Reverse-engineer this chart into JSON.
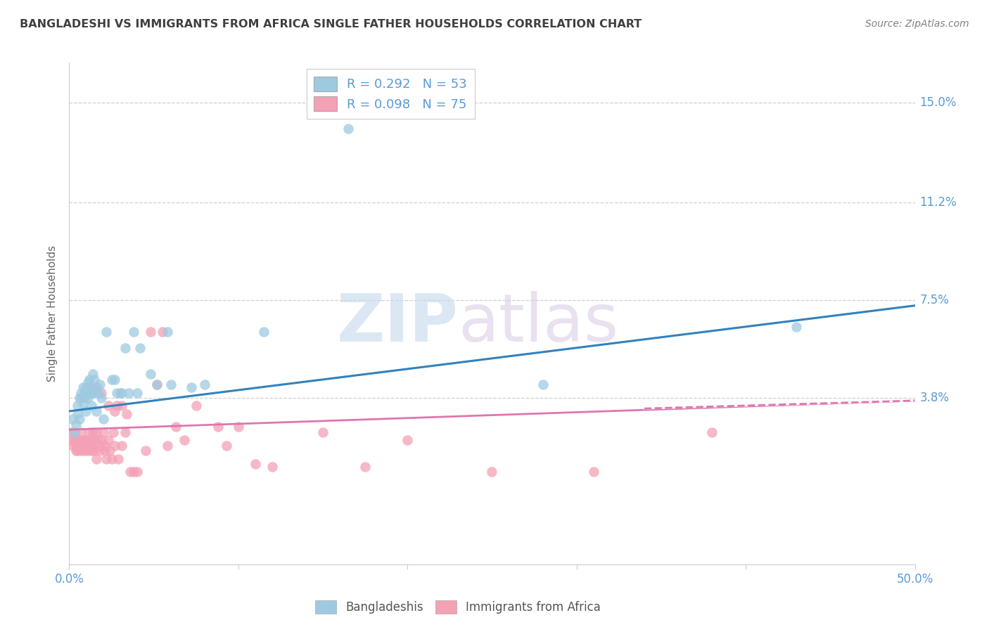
{
  "title": "BANGLADESHI VS IMMIGRANTS FROM AFRICA SINGLE FATHER HOUSEHOLDS CORRELATION CHART",
  "source": "Source: ZipAtlas.com",
  "ylabel": "Single Father Households",
  "ytick_labels": [
    "15.0%",
    "11.2%",
    "7.5%",
    "3.8%"
  ],
  "ytick_values": [
    0.15,
    0.112,
    0.075,
    0.038
  ],
  "xtick_values": [
    0.0,
    0.1,
    0.2,
    0.3,
    0.4,
    0.5
  ],
  "xtick_labels_show": [
    "0.0%",
    "",
    "",
    "",
    "",
    "50.0%"
  ],
  "xlim": [
    0.0,
    0.5
  ],
  "ylim": [
    -0.025,
    0.165
  ],
  "blue_R": "0.292",
  "blue_N": "53",
  "pink_R": "0.098",
  "pink_N": "75",
  "blue_color": "#9ecae1",
  "pink_color": "#f4a0b5",
  "blue_line_color": "#3182bd",
  "pink_line_color": "#de77ae",
  "blue_scatter": [
    [
      0.002,
      0.03
    ],
    [
      0.003,
      0.025
    ],
    [
      0.004,
      0.028
    ],
    [
      0.005,
      0.032
    ],
    [
      0.005,
      0.035
    ],
    [
      0.006,
      0.038
    ],
    [
      0.006,
      0.03
    ],
    [
      0.007,
      0.04
    ],
    [
      0.007,
      0.038
    ],
    [
      0.008,
      0.036
    ],
    [
      0.008,
      0.042
    ],
    [
      0.009,
      0.04
    ],
    [
      0.009,
      0.038
    ],
    [
      0.01,
      0.042
    ],
    [
      0.01,
      0.04
    ],
    [
      0.01,
      0.033
    ],
    [
      0.011,
      0.044
    ],
    [
      0.011,
      0.038
    ],
    [
      0.012,
      0.042
    ],
    [
      0.012,
      0.045
    ],
    [
      0.013,
      0.04
    ],
    [
      0.013,
      0.035
    ],
    [
      0.014,
      0.04
    ],
    [
      0.014,
      0.047
    ],
    [
      0.015,
      0.045
    ],
    [
      0.015,
      0.041
    ],
    [
      0.016,
      0.042
    ],
    [
      0.016,
      0.033
    ],
    [
      0.017,
      0.04
    ],
    [
      0.018,
      0.043
    ],
    [
      0.019,
      0.038
    ],
    [
      0.02,
      0.03
    ],
    [
      0.022,
      0.063
    ],
    [
      0.025,
      0.045
    ],
    [
      0.027,
      0.045
    ],
    [
      0.028,
      0.04
    ],
    [
      0.03,
      0.04
    ],
    [
      0.031,
      0.04
    ],
    [
      0.033,
      0.057
    ],
    [
      0.035,
      0.04
    ],
    [
      0.038,
      0.063
    ],
    [
      0.04,
      0.04
    ],
    [
      0.042,
      0.057
    ],
    [
      0.048,
      0.047
    ],
    [
      0.052,
      0.043
    ],
    [
      0.058,
      0.063
    ],
    [
      0.06,
      0.043
    ],
    [
      0.072,
      0.042
    ],
    [
      0.08,
      0.043
    ],
    [
      0.115,
      0.063
    ],
    [
      0.165,
      0.14
    ],
    [
      0.28,
      0.043
    ],
    [
      0.43,
      0.065
    ]
  ],
  "pink_scatter": [
    [
      0.001,
      0.025
    ],
    [
      0.002,
      0.022
    ],
    [
      0.002,
      0.02
    ],
    [
      0.003,
      0.025
    ],
    [
      0.003,
      0.022
    ],
    [
      0.004,
      0.02
    ],
    [
      0.004,
      0.018
    ],
    [
      0.005,
      0.022
    ],
    [
      0.005,
      0.018
    ],
    [
      0.006,
      0.022
    ],
    [
      0.006,
      0.02
    ],
    [
      0.007,
      0.018
    ],
    [
      0.007,
      0.025
    ],
    [
      0.008,
      0.022
    ],
    [
      0.008,
      0.02
    ],
    [
      0.009,
      0.018
    ],
    [
      0.01,
      0.022
    ],
    [
      0.01,
      0.02
    ],
    [
      0.011,
      0.022
    ],
    [
      0.011,
      0.018
    ],
    [
      0.012,
      0.025
    ],
    [
      0.012,
      0.02
    ],
    [
      0.013,
      0.022
    ],
    [
      0.013,
      0.018
    ],
    [
      0.014,
      0.025
    ],
    [
      0.014,
      0.02
    ],
    [
      0.015,
      0.022
    ],
    [
      0.015,
      0.018
    ],
    [
      0.016,
      0.025
    ],
    [
      0.016,
      0.042
    ],
    [
      0.016,
      0.015
    ],
    [
      0.017,
      0.022
    ],
    [
      0.018,
      0.02
    ],
    [
      0.018,
      0.018
    ],
    [
      0.019,
      0.04
    ],
    [
      0.019,
      0.022
    ],
    [
      0.02,
      0.025
    ],
    [
      0.021,
      0.02
    ],
    [
      0.021,
      0.018
    ],
    [
      0.022,
      0.015
    ],
    [
      0.023,
      0.022
    ],
    [
      0.023,
      0.035
    ],
    [
      0.024,
      0.018
    ],
    [
      0.025,
      0.015
    ],
    [
      0.026,
      0.025
    ],
    [
      0.027,
      0.02
    ],
    [
      0.027,
      0.033
    ],
    [
      0.028,
      0.035
    ],
    [
      0.029,
      0.015
    ],
    [
      0.031,
      0.02
    ],
    [
      0.031,
      0.035
    ],
    [
      0.033,
      0.025
    ],
    [
      0.034,
      0.032
    ],
    [
      0.036,
      0.01
    ],
    [
      0.038,
      0.01
    ],
    [
      0.04,
      0.01
    ],
    [
      0.045,
      0.018
    ],
    [
      0.048,
      0.063
    ],
    [
      0.052,
      0.043
    ],
    [
      0.055,
      0.063
    ],
    [
      0.058,
      0.02
    ],
    [
      0.063,
      0.027
    ],
    [
      0.068,
      0.022
    ],
    [
      0.075,
      0.035
    ],
    [
      0.088,
      0.027
    ],
    [
      0.093,
      0.02
    ],
    [
      0.1,
      0.027
    ],
    [
      0.11,
      0.013
    ],
    [
      0.12,
      0.012
    ],
    [
      0.15,
      0.025
    ],
    [
      0.175,
      0.012
    ],
    [
      0.2,
      0.022
    ],
    [
      0.25,
      0.01
    ],
    [
      0.31,
      0.01
    ],
    [
      0.38,
      0.025
    ]
  ],
  "blue_trendline": [
    [
      0.0,
      0.033
    ],
    [
      0.5,
      0.073
    ]
  ],
  "pink_trendline": [
    [
      0.0,
      0.026
    ],
    [
      0.5,
      0.037
    ]
  ],
  "pink_dash_trendline": [
    [
      0.34,
      0.034
    ],
    [
      0.5,
      0.037
    ]
  ],
  "legend_label_blue": "Bangladeshis",
  "legend_label_pink": "Immigrants from Africa",
  "watermark_zip": "ZIP",
  "watermark_atlas": "atlas",
  "background_color": "#ffffff",
  "grid_color": "#d0d0d0",
  "axis_color": "#cccccc",
  "right_label_color": "#5b9bd5",
  "title_color": "#404040",
  "source_color": "#808080"
}
